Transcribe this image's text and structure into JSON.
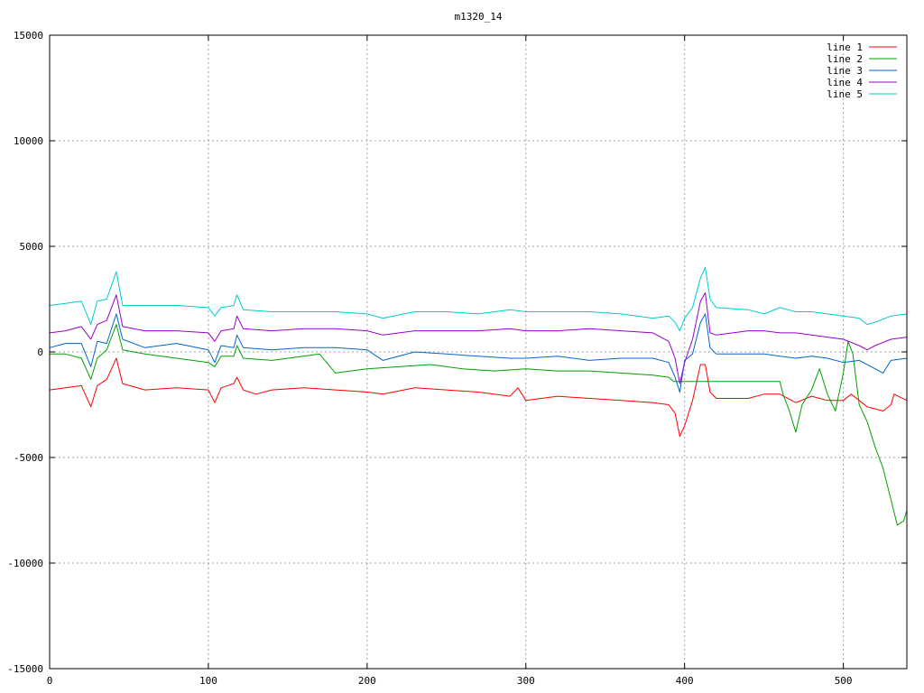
{
  "chart_data": {
    "type": "line",
    "title": "m1320_14",
    "xlabel": "",
    "ylabel": "",
    "xlim": [
      0,
      540
    ],
    "ylim": [
      -15000,
      15000
    ],
    "grid": true,
    "legend_position": "top-right",
    "x_ticks": [
      0,
      100,
      200,
      300,
      400,
      500
    ],
    "y_ticks": [
      -15000,
      -10000,
      -5000,
      0,
      5000,
      10000,
      15000
    ],
    "x_tick_labels": [
      "0",
      "100",
      "200",
      "300",
      "400",
      "500"
    ],
    "y_tick_labels": [
      "-15000",
      "-10000",
      "-5000",
      "0",
      "5000",
      "10000",
      "15000"
    ],
    "series": [
      {
        "name": "line 1",
        "color": "#ff0000",
        "points": [
          [
            0,
            -1800
          ],
          [
            10,
            -1700
          ],
          [
            20,
            -1600
          ],
          [
            26,
            -2600
          ],
          [
            30,
            -1600
          ],
          [
            36,
            -1300
          ],
          [
            42,
            -300
          ],
          [
            46,
            -1500
          ],
          [
            60,
            -1800
          ],
          [
            80,
            -1700
          ],
          [
            100,
            -1800
          ],
          [
            104,
            -2400
          ],
          [
            108,
            -1700
          ],
          [
            116,
            -1500
          ],
          [
            118,
            -1200
          ],
          [
            122,
            -1800
          ],
          [
            130,
            -2000
          ],
          [
            140,
            -1800
          ],
          [
            160,
            -1700
          ],
          [
            180,
            -1800
          ],
          [
            200,
            -1900
          ],
          [
            210,
            -2000
          ],
          [
            230,
            -1700
          ],
          [
            250,
            -1800
          ],
          [
            270,
            -1900
          ],
          [
            290,
            -2100
          ],
          [
            295,
            -1700
          ],
          [
            300,
            -2300
          ],
          [
            320,
            -2100
          ],
          [
            340,
            -2200
          ],
          [
            360,
            -2300
          ],
          [
            380,
            -2400
          ],
          [
            390,
            -2500
          ],
          [
            394,
            -2900
          ],
          [
            397,
            -4000
          ],
          [
            400,
            -3500
          ],
          [
            405,
            -2300
          ],
          [
            410,
            -600
          ],
          [
            413,
            -600
          ],
          [
            416,
            -1900
          ],
          [
            420,
            -2200
          ],
          [
            440,
            -2200
          ],
          [
            450,
            -2000
          ],
          [
            460,
            -2000
          ],
          [
            470,
            -2400
          ],
          [
            480,
            -2100
          ],
          [
            490,
            -2300
          ],
          [
            500,
            -2300
          ],
          [
            505,
            -2000
          ],
          [
            515,
            -2600
          ],
          [
            525,
            -2800
          ],
          [
            530,
            -2500
          ],
          [
            532,
            -2000
          ],
          [
            540,
            -2300
          ]
        ]
      },
      {
        "name": "line 2",
        "color": "#00a000",
        "points": [
          [
            0,
            -100
          ],
          [
            10,
            -100
          ],
          [
            20,
            -300
          ],
          [
            26,
            -1300
          ],
          [
            30,
            -300
          ],
          [
            36,
            100
          ],
          [
            42,
            1300
          ],
          [
            46,
            100
          ],
          [
            60,
            -100
          ],
          [
            80,
            -300
          ],
          [
            100,
            -500
          ],
          [
            104,
            -700
          ],
          [
            108,
            -200
          ],
          [
            116,
            -200
          ],
          [
            118,
            300
          ],
          [
            122,
            -300
          ],
          [
            140,
            -400
          ],
          [
            160,
            -200
          ],
          [
            170,
            -100
          ],
          [
            180,
            -1000
          ],
          [
            200,
            -800
          ],
          [
            220,
            -700
          ],
          [
            240,
            -600
          ],
          [
            260,
            -800
          ],
          [
            280,
            -900
          ],
          [
            300,
            -800
          ],
          [
            320,
            -900
          ],
          [
            340,
            -900
          ],
          [
            360,
            -1000
          ],
          [
            380,
            -1100
          ],
          [
            390,
            -1200
          ],
          [
            393,
            -1400
          ],
          [
            460,
            -1400
          ],
          [
            462,
            -2000
          ],
          [
            466,
            -2800
          ],
          [
            470,
            -3800
          ],
          [
            474,
            -2500
          ],
          [
            480,
            -1800
          ],
          [
            485,
            -800
          ],
          [
            490,
            -2000
          ],
          [
            495,
            -2800
          ],
          [
            500,
            -1000
          ],
          [
            503,
            500
          ],
          [
            506,
            -100
          ],
          [
            510,
            -2500
          ],
          [
            515,
            -3300
          ],
          [
            520,
            -4500
          ],
          [
            525,
            -5500
          ],
          [
            530,
            -7000
          ],
          [
            534,
            -8200
          ],
          [
            538,
            -8000
          ],
          [
            540,
            -7500
          ]
        ]
      },
      {
        "name": "line 3",
        "color": "#0066cc",
        "points": [
          [
            0,
            200
          ],
          [
            10,
            400
          ],
          [
            20,
            400
          ],
          [
            26,
            -700
          ],
          [
            30,
            500
          ],
          [
            36,
            400
          ],
          [
            42,
            1800
          ],
          [
            46,
            600
          ],
          [
            60,
            200
          ],
          [
            80,
            400
          ],
          [
            100,
            100
          ],
          [
            104,
            -500
          ],
          [
            108,
            300
          ],
          [
            116,
            200
          ],
          [
            118,
            800
          ],
          [
            122,
            200
          ],
          [
            140,
            100
          ],
          [
            160,
            200
          ],
          [
            180,
            200
          ],
          [
            200,
            100
          ],
          [
            210,
            -400
          ],
          [
            230,
            0
          ],
          [
            250,
            -100
          ],
          [
            270,
            -200
          ],
          [
            290,
            -300
          ],
          [
            300,
            -300
          ],
          [
            320,
            -200
          ],
          [
            340,
            -400
          ],
          [
            360,
            -300
          ],
          [
            380,
            -300
          ],
          [
            390,
            -500
          ],
          [
            394,
            -1200
          ],
          [
            397,
            -1900
          ],
          [
            400,
            -400
          ],
          [
            405,
            -100
          ],
          [
            410,
            1400
          ],
          [
            413,
            1800
          ],
          [
            416,
            200
          ],
          [
            420,
            -100
          ],
          [
            440,
            -100
          ],
          [
            450,
            -100
          ],
          [
            460,
            -200
          ],
          [
            470,
            -300
          ],
          [
            480,
            -200
          ],
          [
            490,
            -300
          ],
          [
            500,
            -500
          ],
          [
            510,
            -400
          ],
          [
            520,
            -800
          ],
          [
            525,
            -1000
          ],
          [
            530,
            -400
          ],
          [
            540,
            -300
          ]
        ]
      },
      {
        "name": "line 4",
        "color": "#9900cc",
        "points": [
          [
            0,
            900
          ],
          [
            10,
            1000
          ],
          [
            20,
            1200
          ],
          [
            26,
            600
          ],
          [
            30,
            1300
          ],
          [
            36,
            1500
          ],
          [
            42,
            2700
          ],
          [
            46,
            1200
          ],
          [
            60,
            1000
          ],
          [
            80,
            1000
          ],
          [
            100,
            900
          ],
          [
            104,
            500
          ],
          [
            108,
            1000
          ],
          [
            116,
            1100
          ],
          [
            118,
            1700
          ],
          [
            122,
            1100
          ],
          [
            140,
            1000
          ],
          [
            160,
            1100
          ],
          [
            180,
            1100
          ],
          [
            200,
            1000
          ],
          [
            210,
            800
          ],
          [
            230,
            1000
          ],
          [
            250,
            1000
          ],
          [
            270,
            1000
          ],
          [
            290,
            1100
          ],
          [
            300,
            1000
          ],
          [
            320,
            1000
          ],
          [
            340,
            1100
          ],
          [
            360,
            1000
          ],
          [
            380,
            900
          ],
          [
            390,
            500
          ],
          [
            394,
            -300
          ],
          [
            397,
            -1500
          ],
          [
            400,
            -500
          ],
          [
            405,
            600
          ],
          [
            410,
            2400
          ],
          [
            413,
            2800
          ],
          [
            416,
            900
          ],
          [
            420,
            800
          ],
          [
            440,
            1000
          ],
          [
            450,
            1000
          ],
          [
            460,
            900
          ],
          [
            470,
            900
          ],
          [
            480,
            800
          ],
          [
            490,
            700
          ],
          [
            500,
            600
          ],
          [
            510,
            300
          ],
          [
            515,
            100
          ],
          [
            520,
            300
          ],
          [
            530,
            600
          ],
          [
            540,
            700
          ]
        ]
      },
      {
        "name": "line 5",
        "color": "#00cccc",
        "points": [
          [
            0,
            2200
          ],
          [
            10,
            2300
          ],
          [
            20,
            2400
          ],
          [
            26,
            1300
          ],
          [
            30,
            2400
          ],
          [
            36,
            2500
          ],
          [
            42,
            3800
          ],
          [
            46,
            2200
          ],
          [
            60,
            2200
          ],
          [
            80,
            2200
          ],
          [
            100,
            2100
          ],
          [
            104,
            1700
          ],
          [
            108,
            2100
          ],
          [
            116,
            2200
          ],
          [
            118,
            2700
          ],
          [
            122,
            2000
          ],
          [
            140,
            1900
          ],
          [
            160,
            1900
          ],
          [
            180,
            1900
          ],
          [
            200,
            1800
          ],
          [
            210,
            1600
          ],
          [
            230,
            1900
          ],
          [
            250,
            1900
          ],
          [
            270,
            1800
          ],
          [
            290,
            2000
          ],
          [
            300,
            1900
          ],
          [
            320,
            1900
          ],
          [
            340,
            1900
          ],
          [
            360,
            1800
          ],
          [
            380,
            1600
          ],
          [
            390,
            1700
          ],
          [
            394,
            1400
          ],
          [
            397,
            1000
          ],
          [
            400,
            1600
          ],
          [
            405,
            2100
          ],
          [
            410,
            3500
          ],
          [
            413,
            4000
          ],
          [
            416,
            2500
          ],
          [
            420,
            2100
          ],
          [
            440,
            2000
          ],
          [
            450,
            1800
          ],
          [
            460,
            2100
          ],
          [
            470,
            1900
          ],
          [
            480,
            1900
          ],
          [
            490,
            1800
          ],
          [
            500,
            1700
          ],
          [
            510,
            1600
          ],
          [
            515,
            1300
          ],
          [
            520,
            1400
          ],
          [
            530,
            1700
          ],
          [
            540,
            1800
          ]
        ]
      }
    ]
  }
}
